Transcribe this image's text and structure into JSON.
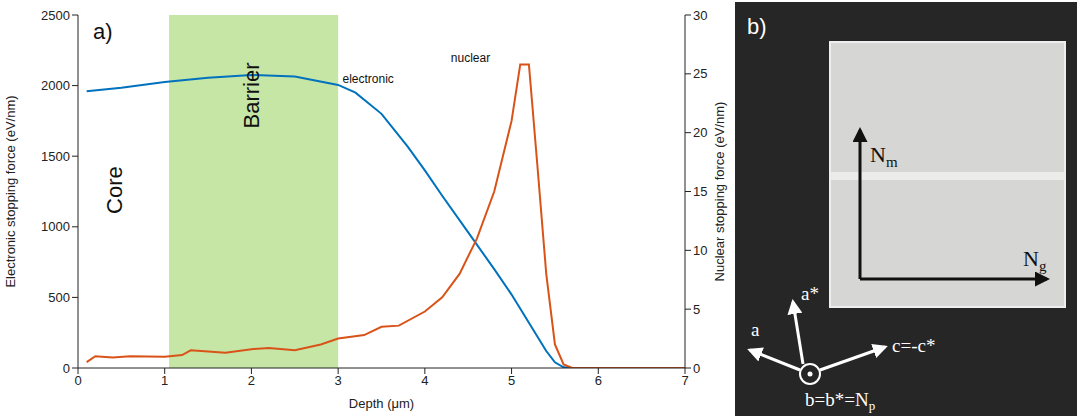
{
  "chart_data": {
    "type": "line",
    "label": "a)",
    "xlabel": "Depth (μm)",
    "ylabel": "Electronic stopping force (eV/nm)",
    "y2label": "Nuclear stopping force (eV/nm)",
    "xlim": [
      0,
      7
    ],
    "xticks": [
      0,
      1,
      2,
      3,
      4,
      5,
      6,
      7
    ],
    "ylim": [
      0,
      2500
    ],
    "yticks": [
      0,
      500,
      1000,
      1500,
      2000,
      2500
    ],
    "y2lim": [
      0,
      30
    ],
    "y2ticks": [
      0,
      5,
      10,
      15,
      20,
      25,
      30
    ],
    "grid": false,
    "series": [
      {
        "name": "electronic",
        "color": "#0072BD",
        "axis": "y",
        "label_x": 3.05,
        "label_y": 2040,
        "x": [
          0.1,
          0.5,
          1.0,
          1.5,
          2.0,
          2.5,
          3.0,
          3.2,
          3.5,
          3.8,
          4.0,
          4.2,
          4.5,
          4.8,
          5.0,
          5.2,
          5.4,
          5.5,
          5.6,
          5.7
        ],
        "values": [
          1960,
          1985,
          2025,
          2055,
          2075,
          2065,
          2005,
          1950,
          1800,
          1570,
          1400,
          1220,
          960,
          700,
          520,
          320,
          120,
          40,
          5,
          0
        ]
      },
      {
        "name": "nuclear",
        "color": "#D95319",
        "axis": "y2",
        "label_x": 4.3,
        "label_y": 26.3,
        "x": [
          0.1,
          0.2,
          0.4,
          0.6,
          1.0,
          1.2,
          1.3,
          1.5,
          1.7,
          2.0,
          2.2,
          2.5,
          2.8,
          3.0,
          3.3,
          3.5,
          3.7,
          4.0,
          4.2,
          4.4,
          4.6,
          4.8,
          5.0,
          5.1,
          5.2,
          5.3,
          5.4,
          5.5,
          5.6,
          5.7,
          6.0,
          7.0
        ],
        "values": [
          0.5,
          1.0,
          0.9,
          1.0,
          0.95,
          1.1,
          1.5,
          1.4,
          1.3,
          1.6,
          1.7,
          1.5,
          2.0,
          2.5,
          2.8,
          3.5,
          3.6,
          4.8,
          6.0,
          8.0,
          11,
          15,
          21,
          25.8,
          25.8,
          17,
          8,
          2,
          0.3,
          0,
          0,
          0
        ]
      }
    ],
    "regions": [
      {
        "text": "Barrier",
        "x0": 1.05,
        "x1": 3.0,
        "label_y": 1930,
        "color": "#c6e6a6"
      }
    ],
    "annotations": [
      {
        "text": "Core",
        "x": 0.44,
        "y": 1260
      }
    ]
  },
  "panel_b": {
    "label": "b)",
    "sample_axes": [
      {
        "name": "N",
        "sub": "m"
      },
      {
        "name": "N",
        "sub": "g"
      }
    ],
    "crystal_axes": [
      {
        "name": "a"
      },
      {
        "name": "a*"
      },
      {
        "name": "c=-c*"
      },
      {
        "name": "b=b*=N",
        "sub": "p"
      }
    ]
  }
}
